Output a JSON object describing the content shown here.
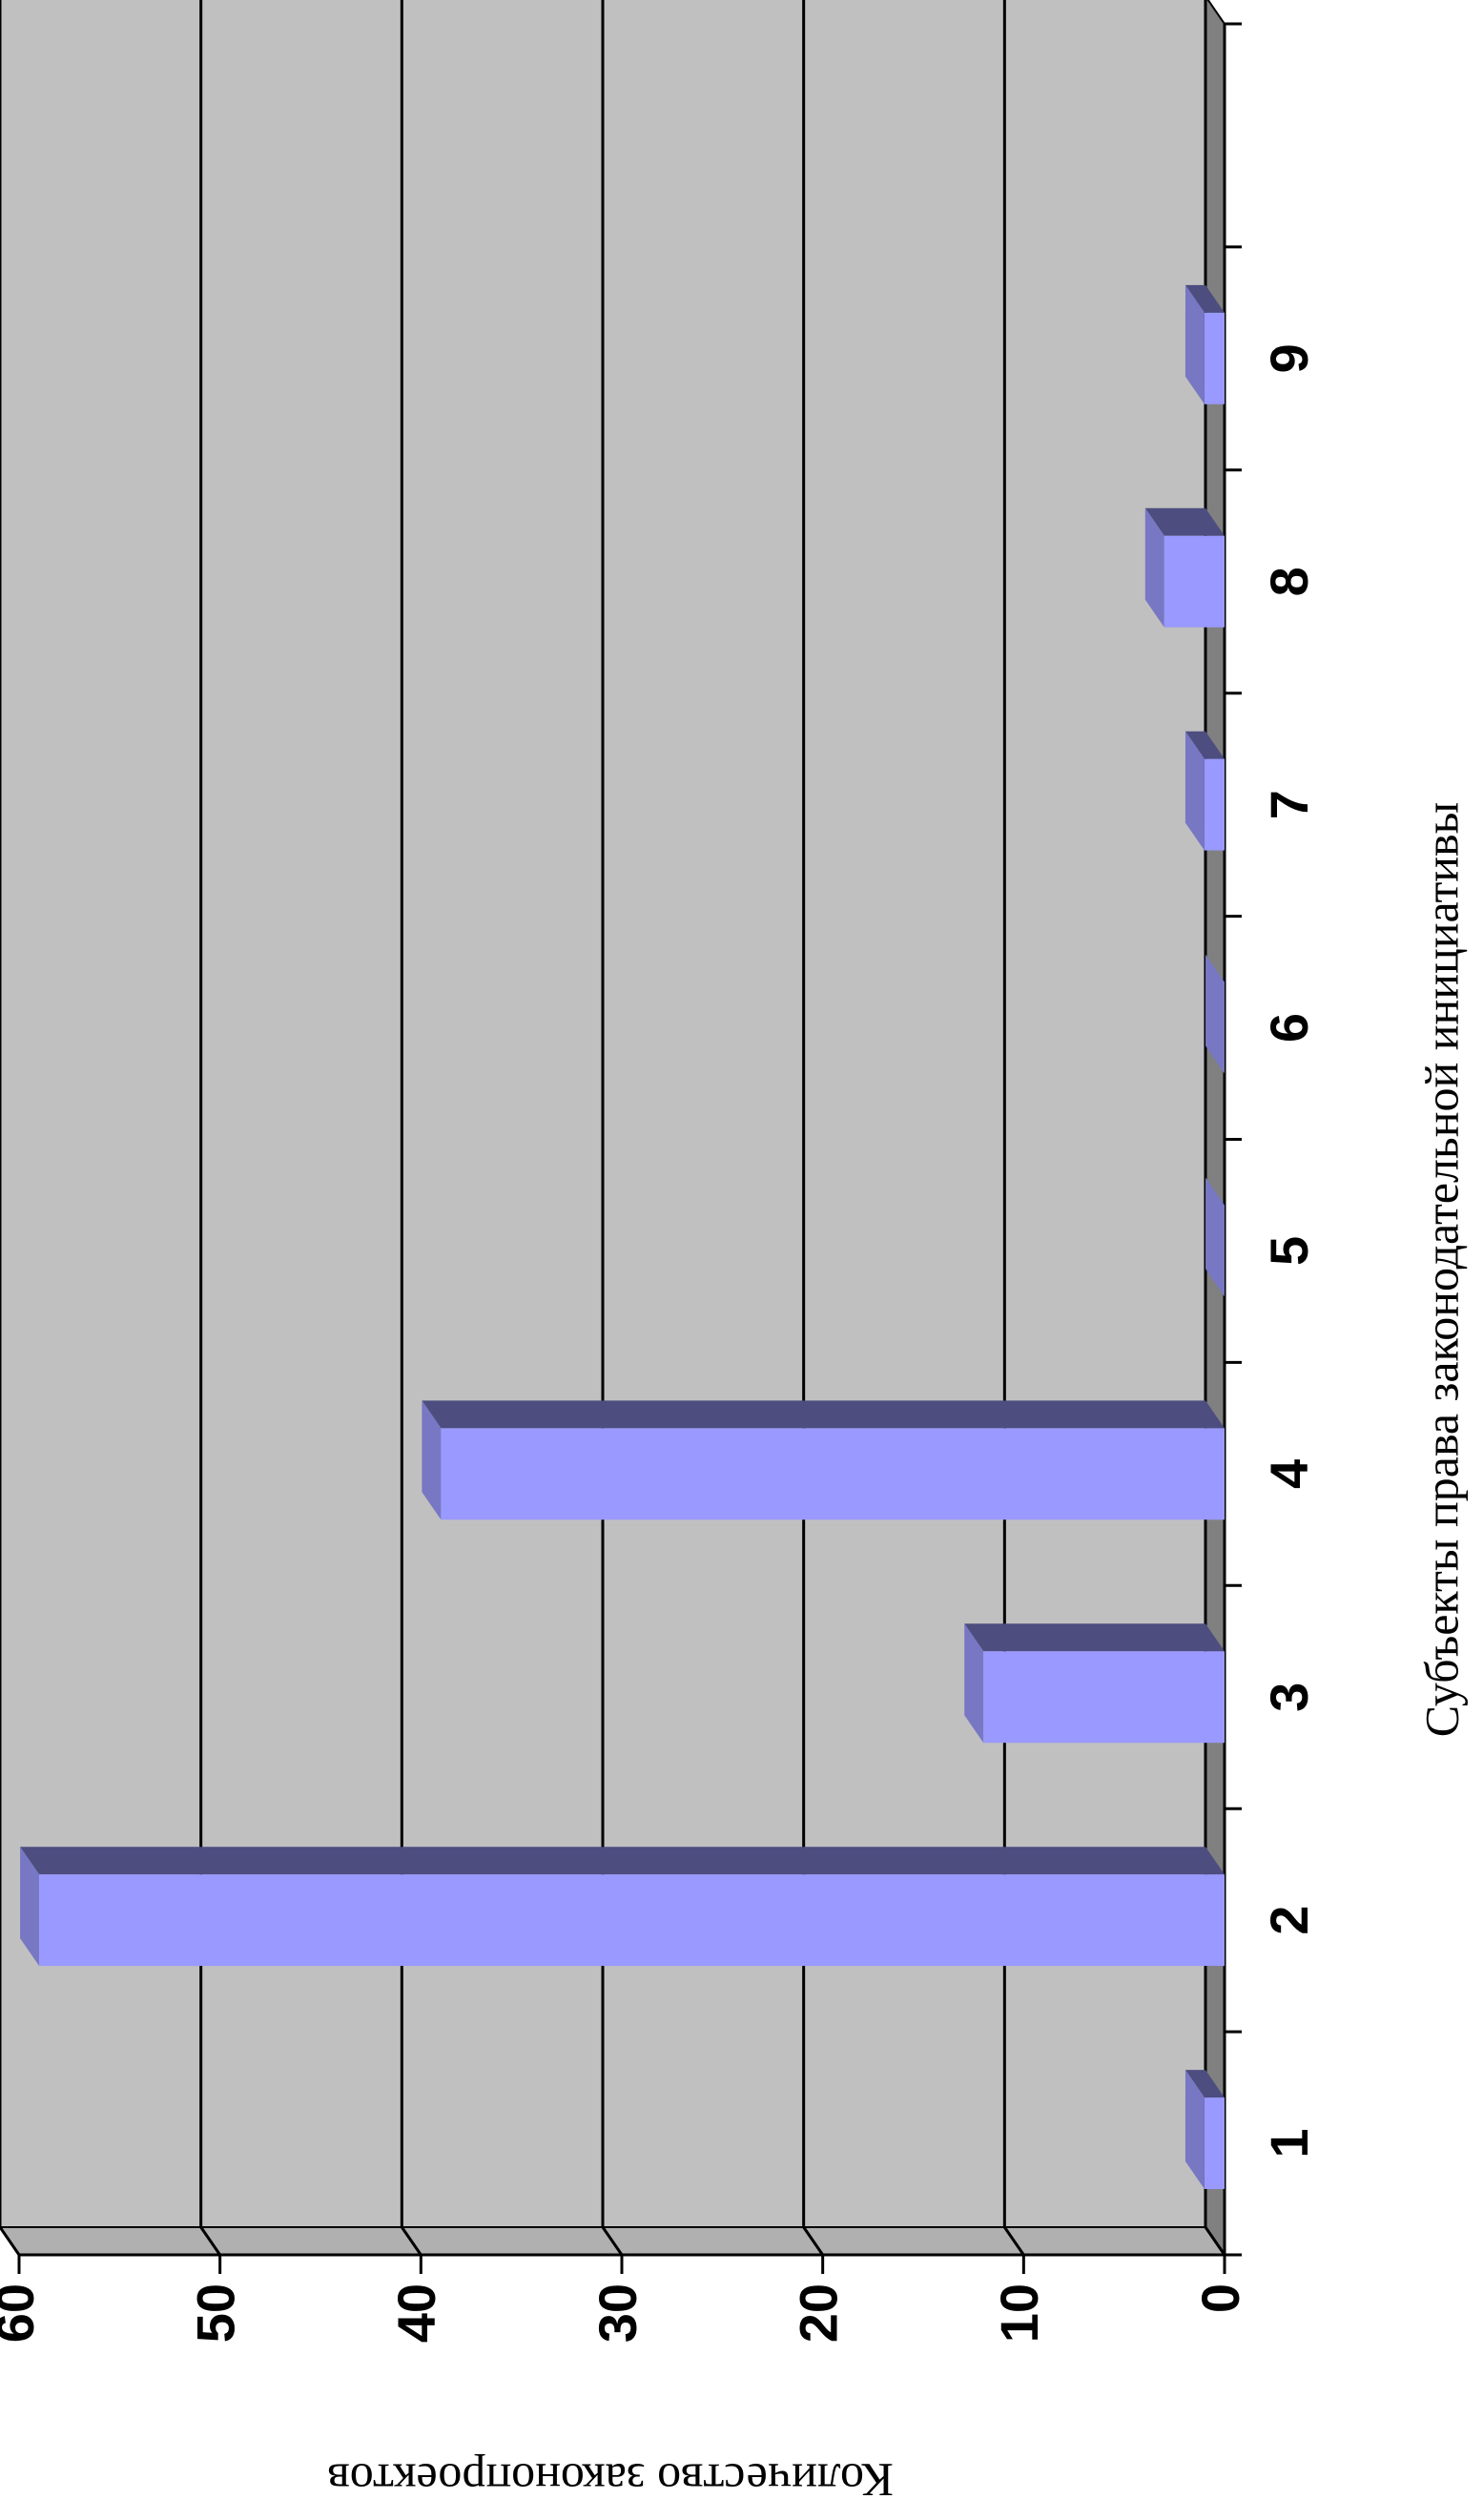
{
  "chart_data": {
    "type": "bar3d",
    "x_label": "Субъекты права законодательной инициативы",
    "y_label": "Количество законопроектов",
    "categories": [
      "1",
      "2",
      "3",
      "4",
      "5",
      "6",
      "7",
      "8",
      "9",
      null
    ],
    "values": [
      1,
      59,
      12,
      39,
      0,
      0,
      1,
      3,
      1,
      null
    ],
    "color": "#9999ff",
    "ylim": [
      0,
      60
    ],
    "yticks": [
      0,
      10,
      20,
      30,
      40,
      50,
      60
    ],
    "grid": true
  }
}
